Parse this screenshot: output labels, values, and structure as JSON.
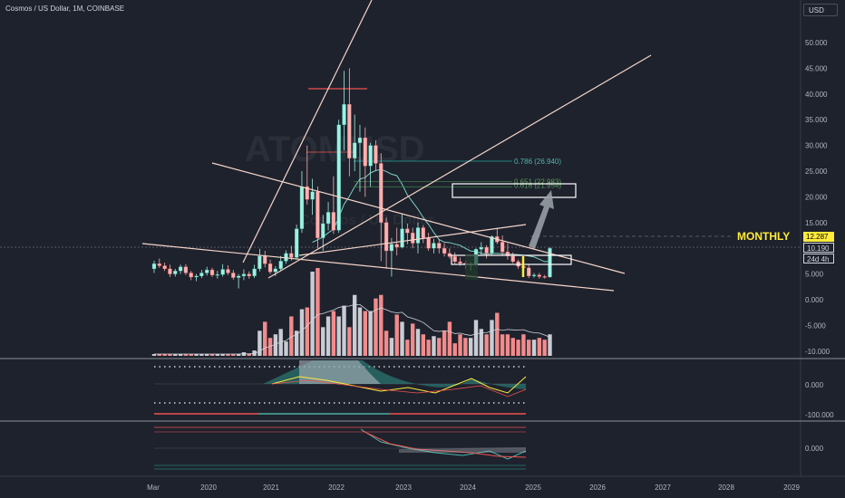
{
  "header": {
    "title": "Cosmos / US Dollar, 1M, COINBASE"
  },
  "currency_label": "USD",
  "annotation": "MONTHLY",
  "price_tags": {
    "price": "12.287",
    "value": "10.190",
    "countdown": "24d 4h"
  },
  "watermark": {
    "symbol": "ATOMUSD",
    "name": "Cosmos / US Dollar"
  },
  "colors": {
    "bg": "#1e222d",
    "up": "#26a69a",
    "down": "#ef5350",
    "trend": "#f5d5c8",
    "accent": "#ffeb3b",
    "fib": "#26a69a",
    "vol_up": "#c9ccd3",
    "vol_down": "#f28b8b"
  },
  "chart_data": {
    "type": "candlestick",
    "yticks": [
      "50.000",
      "45.000",
      "40.000",
      "35.000",
      "30.000",
      "25.000",
      "20.000",
      "15.000",
      "5.000",
      "0.000",
      "-5.000",
      "-10.000"
    ],
    "ytick_values": [
      50,
      45,
      40,
      35,
      30,
      25,
      20,
      15,
      5,
      0,
      -5,
      -10
    ],
    "xticks": [
      "Mar",
      "2020",
      "2021",
      "2022",
      "2023",
      "2024",
      "2025",
      "2026",
      "2027",
      "2028",
      "2029"
    ],
    "osc1_ticks": [
      "0.000",
      "-100.000"
    ],
    "osc2_ticks": [
      "0.000"
    ],
    "fib_levels": [
      {
        "label": "0.786 (26.940)",
        "value": 26.94
      },
      {
        "label": "0.651 (22.983)",
        "value": 22.98
      },
      {
        "label": "0.618 (21.954)",
        "value": 21.95
      }
    ],
    "candles": [
      [
        6.0,
        7.6,
        5.2,
        7.0
      ],
      [
        7.0,
        8.0,
        6.2,
        6.6
      ],
      [
        6.6,
        7.2,
        5.6,
        6.0
      ],
      [
        6.0,
        6.8,
        4.4,
        5.0
      ],
      [
        5.0,
        6.0,
        4.5,
        5.6
      ],
      [
        5.6,
        6.8,
        5.0,
        6.4
      ],
      [
        6.4,
        6.9,
        4.8,
        5.2
      ],
      [
        5.2,
        5.6,
        3.8,
        4.4
      ],
      [
        4.4,
        5.0,
        3.6,
        4.6
      ],
      [
        4.6,
        5.8,
        4.2,
        5.2
      ],
      [
        5.2,
        6.4,
        4.7,
        5.8
      ],
      [
        5.8,
        6.2,
        4.4,
        4.8
      ],
      [
        4.8,
        5.6,
        4.1,
        4.9
      ],
      [
        4.9,
        6.9,
        4.5,
        5.9
      ],
      [
        5.9,
        6.7,
        4.8,
        5.2
      ],
      [
        5.2,
        5.8,
        3.9,
        4.3
      ],
      [
        4.3,
        5.0,
        2.2,
        4.6
      ],
      [
        4.6,
        5.9,
        3.8,
        5.0
      ],
      [
        5.0,
        5.5,
        4.1,
        4.6
      ],
      [
        4.6,
        6.8,
        4.2,
        6.0
      ],
      [
        6.0,
        9.9,
        5.5,
        8.5
      ],
      [
        8.5,
        9.5,
        6.3,
        7.0
      ],
      [
        7.0,
        7.8,
        5.0,
        5.4
      ],
      [
        5.4,
        6.5,
        4.6,
        6.0
      ],
      [
        6.0,
        8.5,
        5.6,
        7.5
      ],
      [
        7.5,
        9.6,
        7.0,
        9.0
      ],
      [
        9.0,
        10.5,
        7.6,
        8.2
      ],
      [
        8.2,
        14.6,
        8.0,
        13.8
      ],
      [
        13.8,
        25.0,
        13.0,
        22.0
      ],
      [
        22.0,
        30.0,
        18.5,
        19.5
      ],
      [
        19.5,
        23.5,
        16.5,
        21.0
      ],
      [
        21.0,
        22.0,
        10.0,
        12.0
      ],
      [
        12.0,
        16.5,
        9.5,
        14.8
      ],
      [
        14.8,
        19.0,
        13.5,
        17.0
      ],
      [
        17.0,
        24.0,
        12.8,
        13.5
      ],
      [
        13.5,
        35.0,
        13.0,
        34.0
      ],
      [
        34.0,
        44.5,
        29.0,
        38.0
      ],
      [
        38.0,
        45.0,
        24.0,
        27.5
      ],
      [
        27.5,
        36.0,
        25.0,
        30.5
      ],
      [
        30.5,
        34.0,
        21.0,
        31.5
      ],
      [
        31.5,
        33.5,
        20.0,
        26.0
      ],
      [
        26.0,
        30.5,
        22.0,
        30.0
      ],
      [
        30.0,
        31.0,
        25.0,
        26.5
      ],
      [
        26.5,
        28.5,
        7.5,
        15.0
      ],
      [
        15.0,
        16.0,
        6.0,
        9.5
      ],
      [
        9.5,
        12.0,
        4.5,
        10.8
      ],
      [
        10.8,
        14.0,
        8.6,
        10.2
      ],
      [
        10.2,
        16.8,
        10.0,
        13.8
      ],
      [
        13.8,
        14.8,
        10.8,
        13.0
      ],
      [
        13.0,
        14.0,
        10.0,
        11.0
      ],
      [
        11.0,
        15.0,
        9.0,
        14.0
      ],
      [
        14.0,
        14.5,
        11.0,
        12.0
      ],
      [
        12.0,
        13.0,
        9.5,
        10.0
      ],
      [
        10.0,
        11.8,
        9.0,
        11.0
      ],
      [
        11.0,
        11.8,
        9.0,
        10.0
      ],
      [
        10.0,
        11.0,
        8.4,
        9.0
      ],
      [
        9.0,
        10.0,
        8.0,
        8.4
      ],
      [
        8.4,
        9.2,
        7.0,
        7.4
      ],
      [
        7.4,
        8.2,
        6.6,
        7.1
      ],
      [
        7.1,
        7.6,
        6.0,
        6.8
      ],
      [
        6.8,
        7.3,
        5.7,
        6.9
      ],
      [
        6.9,
        10.0,
        6.6,
        9.8
      ],
      [
        9.8,
        11.2,
        8.6,
        10.2
      ],
      [
        10.2,
        10.6,
        8.0,
        9.0
      ],
      [
        9.0,
        12.5,
        8.6,
        12.3
      ],
      [
        12.3,
        14.0,
        10.8,
        11.2
      ],
      [
        11.2,
        12.5,
        8.5,
        9.3
      ],
      [
        9.3,
        11.0,
        7.8,
        8.5
      ],
      [
        8.5,
        9.2,
        7.1,
        7.4
      ],
      [
        7.4,
        7.8,
        6.0,
        6.5
      ],
      [
        6.5,
        6.9,
        5.6,
        6.2
      ],
      [
        6.2,
        6.8,
        4.2,
        4.6
      ],
      [
        4.6,
        5.2,
        4.3,
        4.8
      ],
      [
        4.8,
        5.2,
        4.1,
        4.5
      ],
      [
        4.5,
        4.8,
        4.1,
        4.4
      ],
      [
        4.4,
        10.2,
        4.3,
        10.0
      ]
    ],
    "volumes": [
      1,
      1,
      1,
      1,
      1,
      1,
      1,
      1,
      1,
      1,
      1,
      1,
      1,
      1,
      1,
      1,
      1,
      2,
      1,
      3,
      14,
      19,
      10,
      12,
      15,
      8,
      22,
      14,
      26,
      27,
      47,
      49,
      16,
      22,
      25,
      22,
      28,
      16,
      34,
      27,
      25,
      25,
      32,
      34,
      14,
      10,
      23,
      19,
      9,
      18,
      15,
      12,
      9,
      11,
      10,
      14,
      19,
      7,
      12,
      10,
      10,
      20,
      15,
      12,
      20,
      24,
      12,
      12,
      10,
      9,
      12,
      9,
      9,
      10,
      9,
      12
    ],
    "volume_scale": "relative",
    "trend_lines": [
      "ascending-steep",
      "rising-wedge-upper",
      "falling-wedge-upper",
      "falling-wedge-lower",
      "support-line"
    ]
  }
}
